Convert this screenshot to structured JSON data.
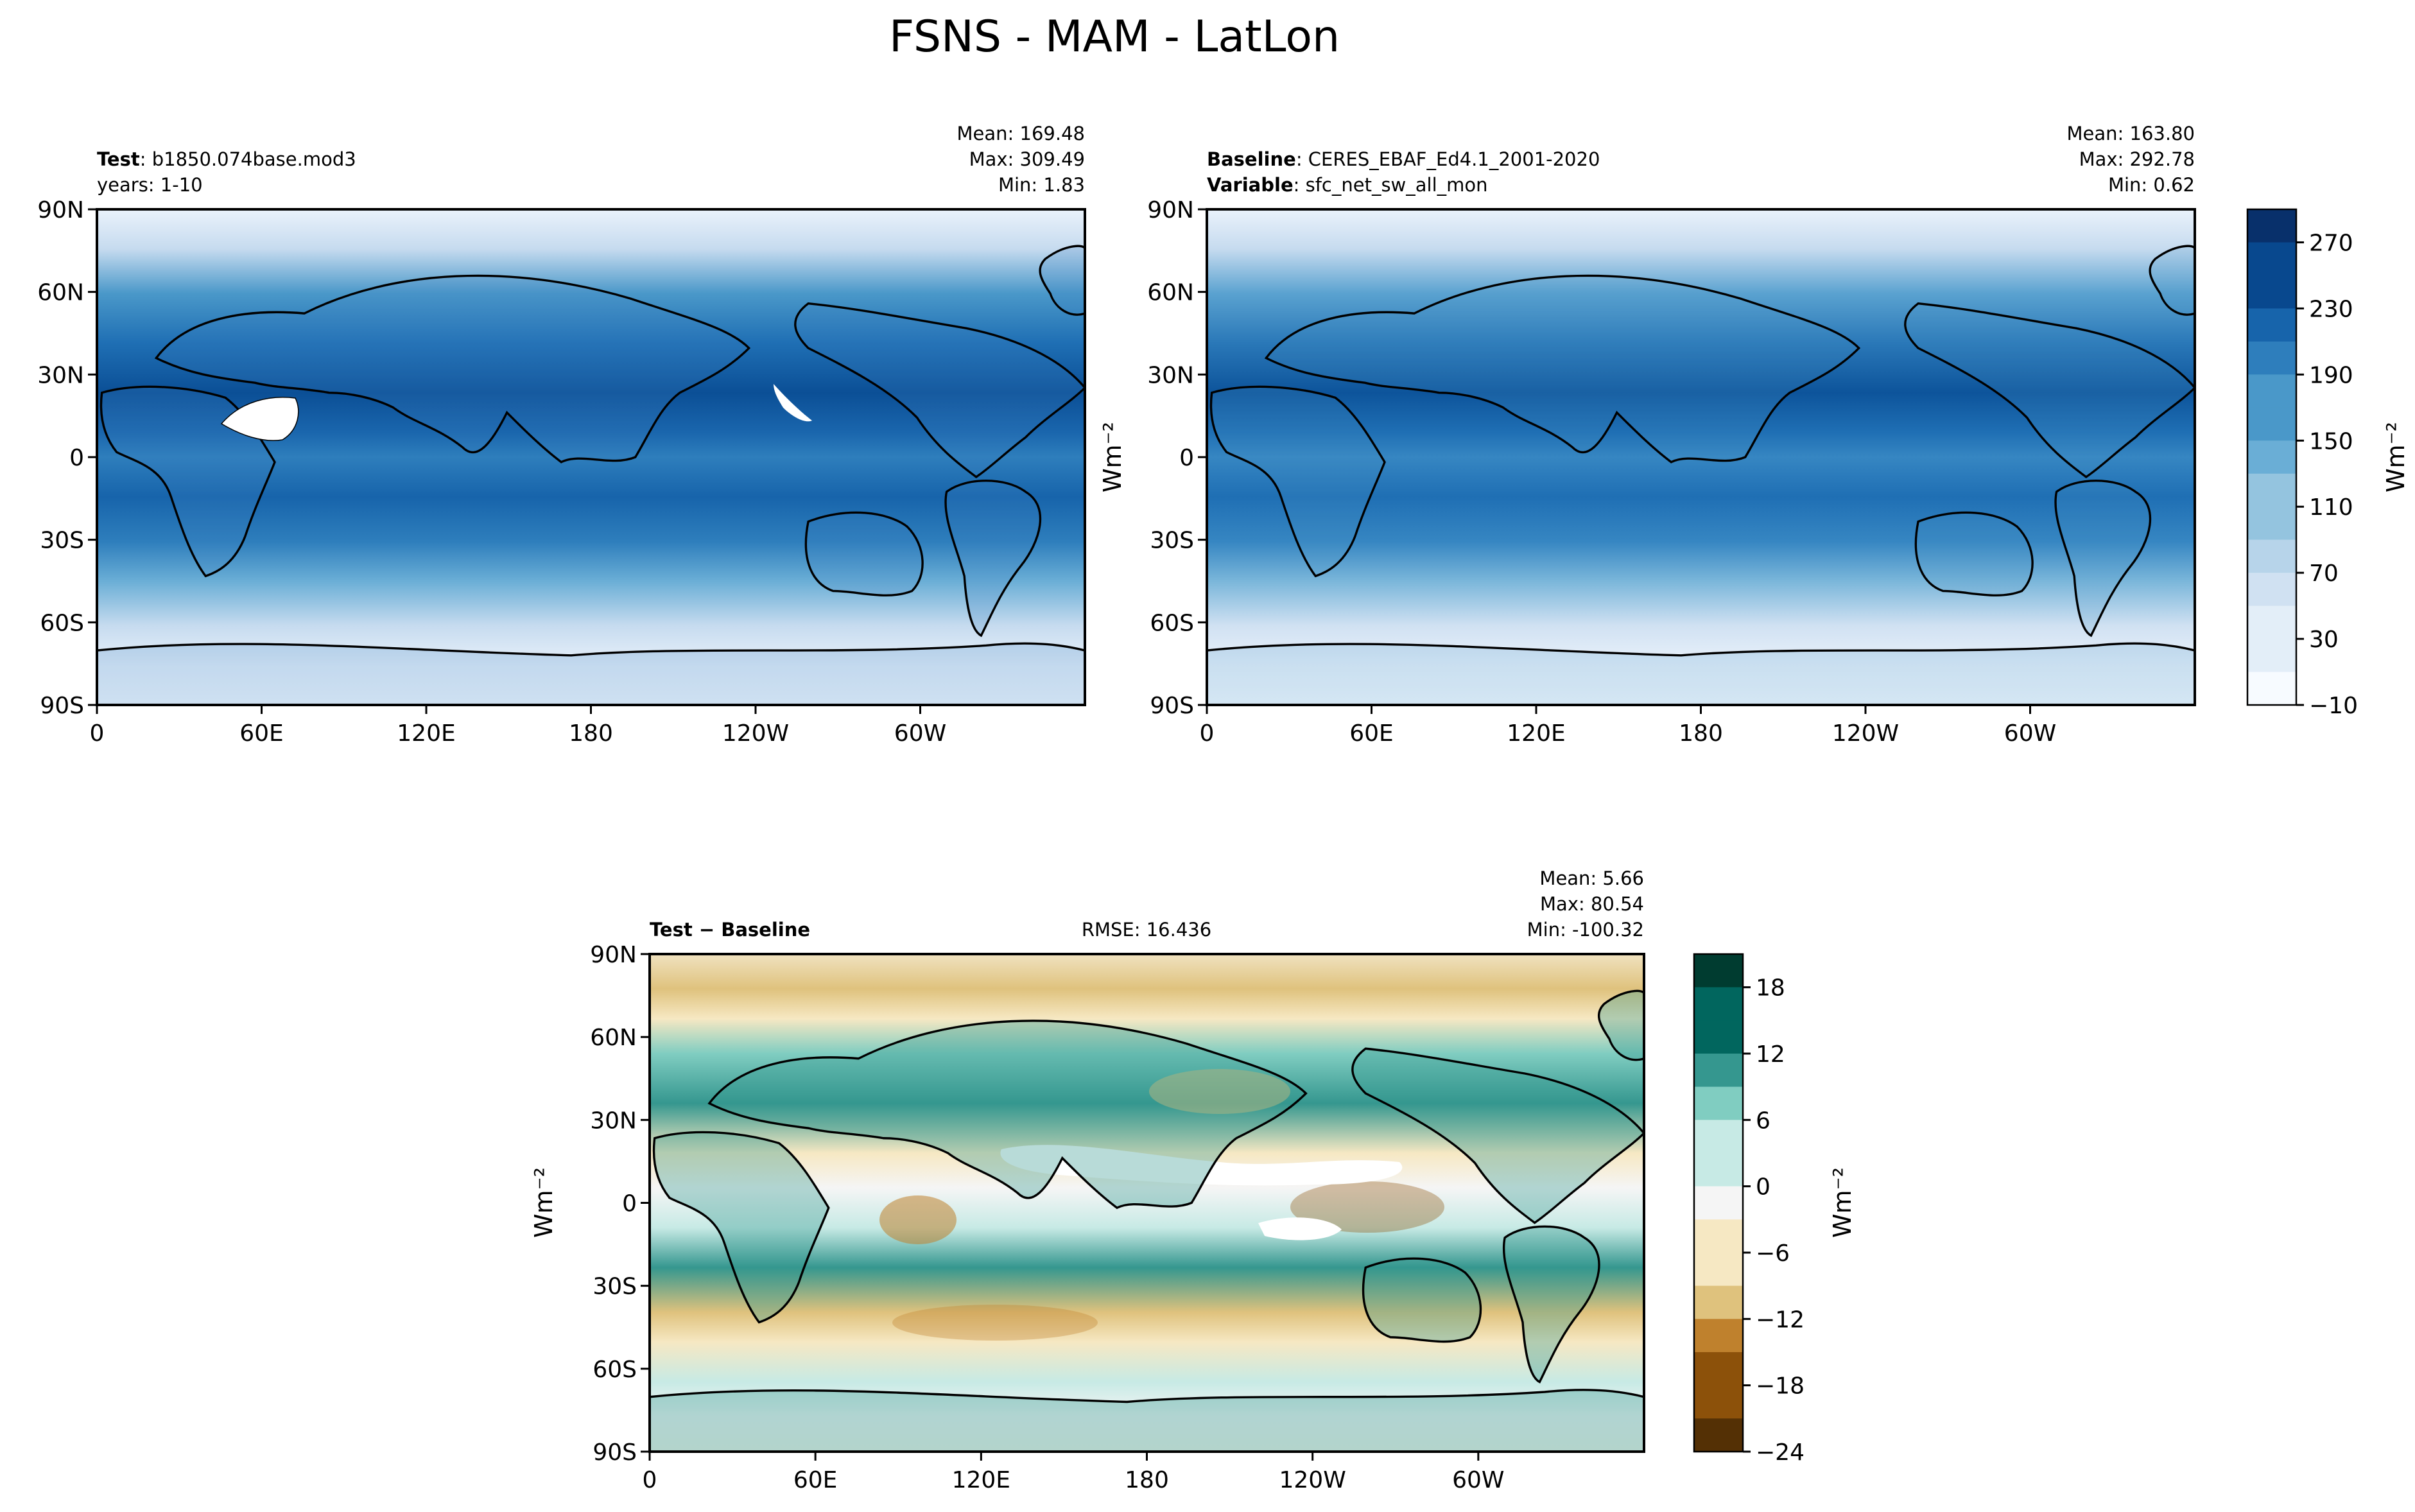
{
  "figure": {
    "title": "FSNS - MAM - LatLon"
  },
  "colors": {
    "blues": [
      "#f7fbff",
      "#e3eef8",
      "#d0e1f2",
      "#b7d4ea",
      "#94c4df",
      "#6aaed6",
      "#4a98c9",
      "#2e7ebc",
      "#1764ab",
      "#08488e",
      "#08306b"
    ],
    "diverging": [
      "#003c30",
      "#01665e",
      "#35978f",
      "#80cdc1",
      "#c7eae5",
      "#f5f5f5",
      "#f6e8c3",
      "#dfc27d",
      "#bf812d",
      "#8c510a",
      "#543005"
    ],
    "land_outline": "#000000"
  },
  "lat_ticks": [
    "90N",
    "60N",
    "30N",
    "0",
    "30S",
    "60S",
    "90S"
  ],
  "lon_ticks": [
    "0",
    "60E",
    "120E",
    "180",
    "120W",
    "60W"
  ],
  "panels": {
    "test": {
      "label_bold": "Test",
      "label_rest": ": b1850.074base.mod3",
      "line2": "years: 1-10",
      "mean": "Mean: 169.48",
      "max": "Max: 309.49",
      "min": "Min:  1.83"
    },
    "baseline": {
      "label_bold": "Baseline",
      "label_rest": ": CERES_EBAF_Ed4.1_2001-2020",
      "var_bold": "Variable",
      "var_rest": ": sfc_net_sw_all_mon",
      "mean": "Mean: 163.80",
      "max": "Max: 292.78",
      "min": "Min:  0.62"
    },
    "diff": {
      "label_bold": "Test − Baseline",
      "rmse": "RMSE: 16.436",
      "mean": "Mean:  5.66",
      "max": "Max: 80.54",
      "min": "Min: -100.32"
    }
  },
  "colorbars": {
    "top": {
      "label": "Wm⁻²",
      "ticks": [
        "270",
        "230",
        "190",
        "150",
        "110",
        "70",
        "30",
        "−10"
      ]
    },
    "bottom": {
      "label": "Wm⁻²",
      "ticks": [
        "18",
        "12",
        "6",
        "0",
        "−6",
        "−12",
        "−18",
        "−24"
      ]
    }
  },
  "side_label": "Wm⁻²",
  "chart_data": [
    {
      "type": "heatmap",
      "title": "Test: b1850.074base.mod3 (years: 1-10)",
      "xlabel": "",
      "ylabel": "",
      "x_range": [
        0,
        360
      ],
      "y_range": [
        -90,
        90
      ],
      "lat_ticks_deg": [
        90,
        60,
        30,
        0,
        -30,
        -60,
        -90
      ],
      "lon_ticks_deg": [
        0,
        60,
        120,
        180,
        240,
        300
      ],
      "zonal_profile": {
        "lat": [
          90,
          75,
          60,
          45,
          30,
          15,
          0,
          -15,
          -30,
          -45,
          -60,
          -75,
          -90
        ],
        "value": [
          20,
          60,
          120,
          190,
          240,
          255,
          225,
          240,
          220,
          160,
          90,
          40,
          10
        ]
      },
      "stats": {
        "mean": 169.48,
        "max": 309.49,
        "min": 1.83
      },
      "units": "Wm-2",
      "clim": [
        -10,
        290
      ]
    },
    {
      "type": "heatmap",
      "title": "Baseline: CERES_EBAF_Ed4.1_2001-2020, Variable: sfc_net_sw_all_mon",
      "xlabel": "",
      "ylabel": "",
      "x_range": [
        0,
        360
      ],
      "y_range": [
        -90,
        90
      ],
      "lat_ticks_deg": [
        90,
        60,
        30,
        0,
        -30,
        -60,
        -90
      ],
      "lon_ticks_deg": [
        0,
        60,
        120,
        180,
        240,
        300
      ],
      "zonal_profile": {
        "lat": [
          90,
          75,
          60,
          45,
          30,
          15,
          0,
          -15,
          -30,
          -45,
          -60,
          -75,
          -90
        ],
        "value": [
          20,
          55,
          110,
          180,
          235,
          250,
          220,
          230,
          210,
          150,
          80,
          35,
          10
        ]
      },
      "stats": {
        "mean": 163.8,
        "max": 292.78,
        "min": 0.62
      },
      "units": "Wm-2",
      "clim": [
        -10,
        290
      ]
    },
    {
      "type": "heatmap",
      "title": "Test - Baseline",
      "xlabel": "",
      "ylabel": "",
      "x_range": [
        0,
        360
      ],
      "y_range": [
        -90,
        90
      ],
      "lat_ticks_deg": [
        90,
        60,
        30,
        0,
        -30,
        -60,
        -90
      ],
      "lon_ticks_deg": [
        0,
        60,
        120,
        180,
        240,
        300
      ],
      "zonal_profile": {
        "lat": [
          90,
          75,
          60,
          45,
          30,
          15,
          0,
          -15,
          -30,
          -45,
          -60,
          -75,
          -90
        ],
        "value": [
          -3,
          -10,
          8,
          10,
          12,
          -6,
          4,
          10,
          14,
          -12,
          -4,
          2,
          0
        ]
      },
      "rmse": 16.436,
      "stats": {
        "mean": 5.66,
        "max": 80.54,
        "min": -100.32
      },
      "units": "Wm-2",
      "clim": [
        -24,
        24
      ]
    }
  ]
}
